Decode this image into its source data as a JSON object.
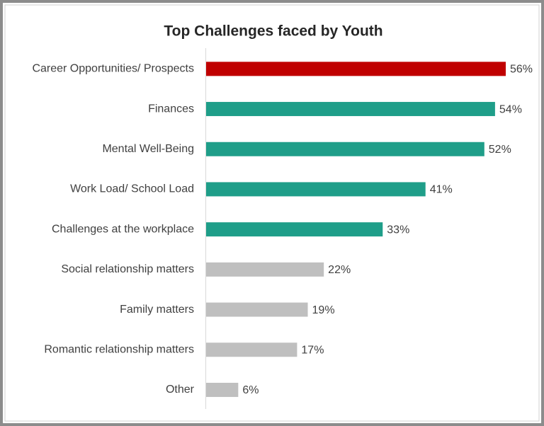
{
  "chart_data": {
    "type": "bar",
    "orientation": "horizontal",
    "title": "Top Challenges faced by Youth",
    "categories": [
      "Career Opportunities/ Prospects",
      "Finances",
      "Mental Well-Being",
      "Work Load/ School Load",
      "Challenges at the workplace",
      "Social relationship matters",
      "Family matters",
      "Romantic relationship matters",
      "Other"
    ],
    "values": [
      56,
      54,
      52,
      41,
      33,
      22,
      19,
      17,
      6
    ],
    "value_labels": [
      "56%",
      "54%",
      "52%",
      "41%",
      "33%",
      "22%",
      "19%",
      "17%",
      "6%"
    ],
    "colors": [
      "#c00000",
      "#1f9e89",
      "#1f9e89",
      "#1f9e89",
      "#1f9e89",
      "#bfbfbf",
      "#bfbfbf",
      "#bfbfbf",
      "#bfbfbf"
    ]
  }
}
